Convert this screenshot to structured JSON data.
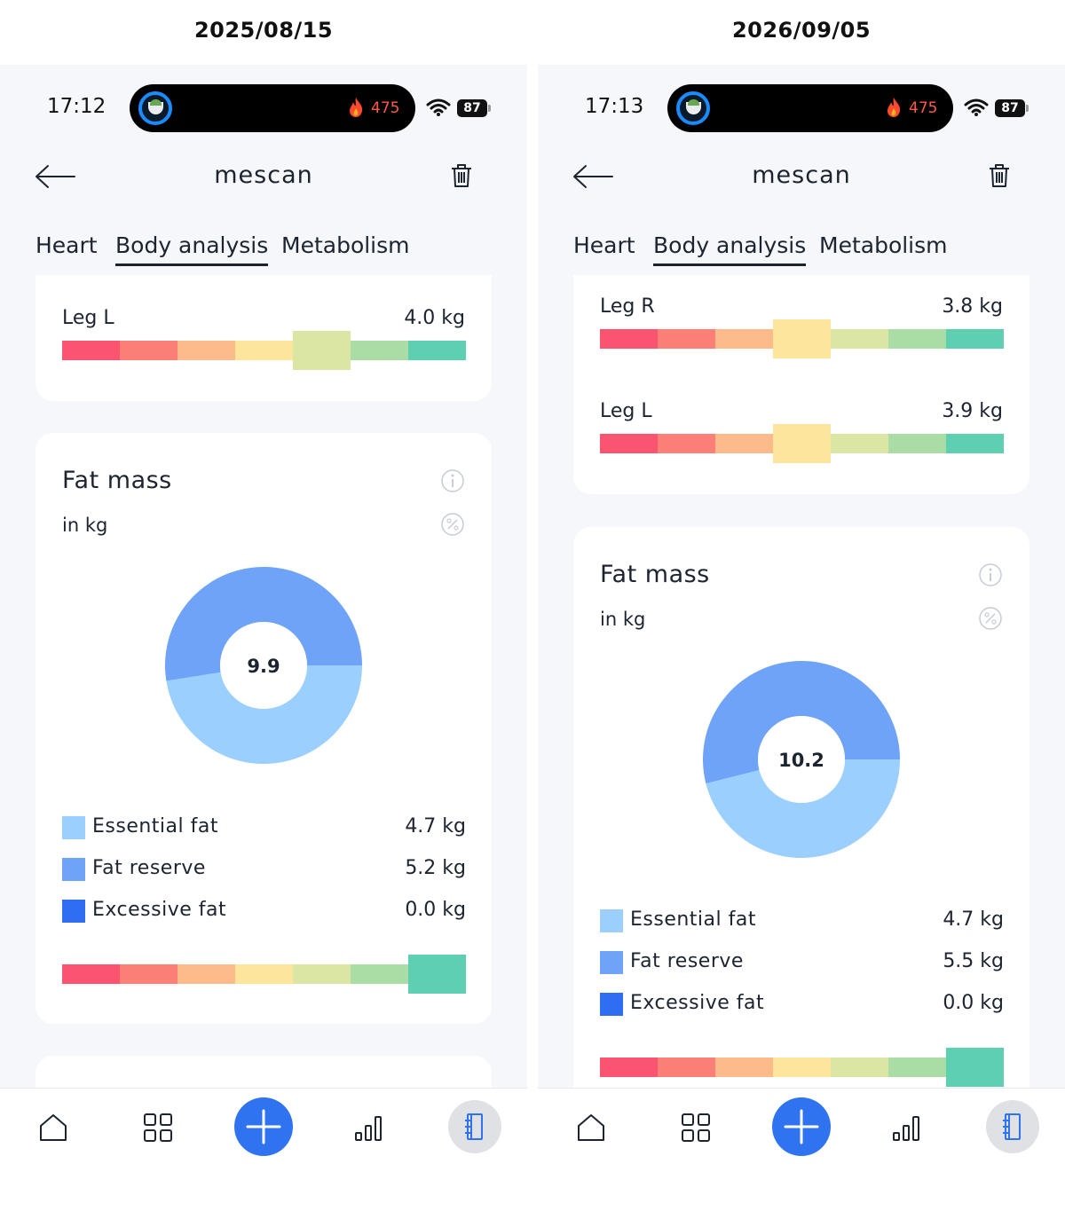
{
  "dates": {
    "left": "2025/08/15",
    "right": "2026/09/05"
  },
  "screens": [
    {
      "status": {
        "time": "17:12",
        "kcal": "475",
        "battery": "87"
      },
      "header": {
        "title": "mescan"
      },
      "tabs": [
        "Heart",
        "Body analysis",
        "Metabolism"
      ],
      "active_tab": "Body analysis",
      "segments": [
        {
          "label": "Leg L",
          "value": "4.0 kg",
          "selected_index": 4
        }
      ],
      "fat_mass": {
        "title": "Fat mass",
        "unit": "in kg",
        "total": "9.9",
        "legend": [
          {
            "label": "Essential fat",
            "value": "4.7 kg",
            "color": "#9bcffd"
          },
          {
            "label": "Fat reserve",
            "value": "5.2 kg",
            "color": "#6ea3f7"
          },
          {
            "label": "Excessive fat",
            "value": "0.0 kg",
            "color": "#2f6ef2"
          }
        ],
        "scale_selected_index": 6
      }
    },
    {
      "status": {
        "time": "17:13",
        "kcal": "475",
        "battery": "87"
      },
      "header": {
        "title": "mescan"
      },
      "tabs": [
        "Heart",
        "Body analysis",
        "Metabolism"
      ],
      "active_tab": "Body analysis",
      "segments": [
        {
          "label": "Leg R",
          "value": "3.8 kg",
          "selected_index": 3
        },
        {
          "label": "Leg L",
          "value": "3.9 kg",
          "selected_index": 3
        }
      ],
      "fat_mass": {
        "title": "Fat mass",
        "unit": "in kg",
        "total": "10.2",
        "legend": [
          {
            "label": "Essential fat",
            "value": "4.7 kg",
            "color": "#9bcffd"
          },
          {
            "label": "Fat reserve",
            "value": "5.5 kg",
            "color": "#6ea3f7"
          },
          {
            "label": "Excessive fat",
            "value": "0.0 kg",
            "color": "#2f6ef2"
          }
        ],
        "scale_selected_index": 6
      }
    }
  ],
  "scale_colors": [
    "#fa5470",
    "#fb7f76",
    "#fdbb8c",
    "#fde59b",
    "#dbe6a4",
    "#aadda5",
    "#5ed0b1"
  ],
  "chart_data": [
    {
      "type": "pie",
      "title": "Fat mass",
      "unit": "in kg",
      "total": 9.9,
      "categories": [
        "Essential fat",
        "Fat reserve",
        "Excessive fat"
      ],
      "values": [
        4.7,
        5.2,
        0.0
      ]
    },
    {
      "type": "pie",
      "title": "Fat mass",
      "unit": "in kg",
      "total": 10.2,
      "categories": [
        "Essential fat",
        "Fat reserve",
        "Excessive fat"
      ],
      "values": [
        4.7,
        5.5,
        0.0
      ]
    }
  ],
  "icons": {
    "back": "arrow-left-icon",
    "delete": "trash-icon",
    "info": "info-icon",
    "percent": "percent-icon",
    "nav": [
      "home-icon",
      "grid-icon",
      "plus-icon",
      "bar-chart-icon",
      "notebook-icon"
    ]
  }
}
